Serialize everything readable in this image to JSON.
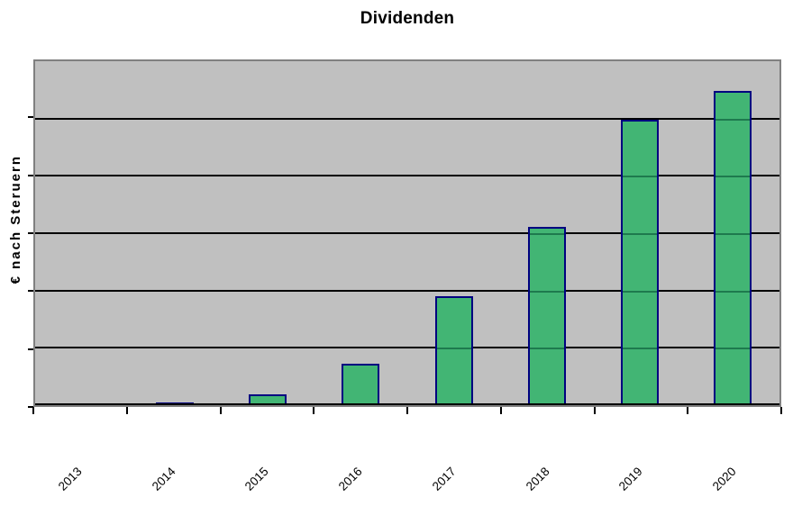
{
  "chart_data": {
    "type": "bar",
    "title": "Dividenden",
    "xlabel": "",
    "ylabel": "€ nach Steruern",
    "categories": [
      "2013",
      "2014",
      "2015",
      "2016",
      "2017",
      "2018",
      "2019",
      "2020"
    ],
    "values": [
      0,
      0.05,
      0.19,
      0.72,
      1.9,
      3.11,
      4.98,
      5.48
    ],
    "value_units": "relative gridline units (y axis shows no numeric tick labels; 1 unit = one gridline interval)",
    "ylim": [
      0,
      6
    ],
    "y_gridline_intervals": 6,
    "x_tick_marks": 9,
    "grid": "horizontal black gridlines on gray plot background",
    "legend": "none",
    "x_label_rotation_deg": 45
  },
  "colors": {
    "background": "#ffffff",
    "text": "#000000",
    "plot_background": "#c0c0c0",
    "plot_border": "#808080",
    "gridline": "#000000",
    "axis_line": "#000000",
    "tick": "#000000",
    "bar_fill": "#42b574",
    "bar_border": "#000080",
    "gridline_over_bar": "#1e7a4e"
  }
}
